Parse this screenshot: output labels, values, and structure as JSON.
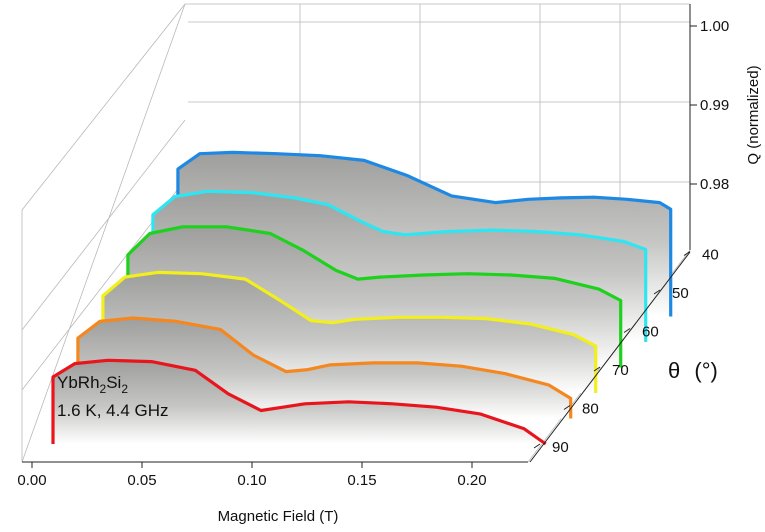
{
  "chart_data": {
    "type": "waterfall-line",
    "xlabel": "Magnetic Field (T)",
    "zlabel": "Q (normalized)",
    "ylabel_symbol": "θ",
    "ylabel_unit": "(°)",
    "annotation": {
      "compound_base": "YbRh",
      "compound_sub1": "2",
      "compound_mid": "Si",
      "compound_sub2": "2",
      "conditions": "1.6 K, 4.4 GHz"
    },
    "x_ticks": [
      "0.00",
      "0.05",
      "0.10",
      "0.15",
      "0.20"
    ],
    "x_tick_values": [
      0.0,
      0.05,
      0.1,
      0.15,
      0.2
    ],
    "xlim": [
      0.0,
      0.23
    ],
    "theta_ticks": [
      "40",
      "50",
      "60",
      "70",
      "80",
      "90"
    ],
    "theta_tick_values": [
      40,
      50,
      60,
      70,
      80,
      90
    ],
    "z_ticks": [
      "1.00",
      "0.99",
      "0.98"
    ],
    "z_tick_values": [
      1.0,
      0.99,
      0.98
    ],
    "zlim": [
      0.973,
      1.002
    ],
    "series": [
      {
        "theta": 40,
        "color": "#1e88e5",
        "x": [
          0.005,
          0.015,
          0.03,
          0.05,
          0.07,
          0.09,
          0.11,
          0.13,
          0.15,
          0.165,
          0.18,
          0.195,
          0.21,
          0.225,
          0.23
        ],
        "y": [
          0.9975,
          0.9998,
          1.0,
          0.9998,
          0.9995,
          0.9988,
          0.9965,
          0.9935,
          0.9925,
          0.993,
          0.9932,
          0.9933,
          0.993,
          0.9925,
          0.9915
        ]
      },
      {
        "theta": 50,
        "color": "#2ee6f2",
        "x": [
          0.005,
          0.015,
          0.03,
          0.05,
          0.07,
          0.085,
          0.1,
          0.11,
          0.12,
          0.14,
          0.16,
          0.18,
          0.2,
          0.22,
          0.23
        ],
        "y": [
          0.9945,
          0.9972,
          0.998,
          0.9978,
          0.997,
          0.996,
          0.9935,
          0.992,
          0.9915,
          0.992,
          0.9922,
          0.992,
          0.9915,
          0.9905,
          0.9893
        ]
      },
      {
        "theta": 60,
        "color": "#1dd11d",
        "x": [
          0.005,
          0.015,
          0.03,
          0.05,
          0.07,
          0.085,
          0.1,
          0.11,
          0.12,
          0.14,
          0.16,
          0.18,
          0.2,
          0.22,
          0.23
        ],
        "y": [
          0.9923,
          0.9955,
          0.9965,
          0.9965,
          0.9955,
          0.993,
          0.99,
          0.9887,
          0.989,
          0.9893,
          0.9895,
          0.9893,
          0.9888,
          0.9872,
          0.9855
        ]
      },
      {
        "theta": 70,
        "color": "#f2ef1c",
        "x": [
          0.005,
          0.015,
          0.03,
          0.05,
          0.07,
          0.085,
          0.1,
          0.11,
          0.12,
          0.14,
          0.16,
          0.18,
          0.2,
          0.22,
          0.23
        ],
        "y": [
          0.99,
          0.9928,
          0.9935,
          0.9933,
          0.9925,
          0.9895,
          0.9863,
          0.986,
          0.9865,
          0.9868,
          0.9868,
          0.9866,
          0.9858,
          0.9842,
          0.9825
        ]
      },
      {
        "theta": 80,
        "color": "#f5871f",
        "x": [
          0.005,
          0.015,
          0.03,
          0.05,
          0.07,
          0.085,
          0.1,
          0.11,
          0.12,
          0.14,
          0.16,
          0.18,
          0.2,
          0.22,
          0.23
        ],
        "y": [
          0.9875,
          0.99,
          0.9905,
          0.99,
          0.9888,
          0.985,
          0.9825,
          0.9828,
          0.9835,
          0.9838,
          0.9838,
          0.9833,
          0.9822,
          0.9805,
          0.9785
        ]
      },
      {
        "theta": 90,
        "color": "#e8161c",
        "x": [
          0.005,
          0.015,
          0.03,
          0.05,
          0.07,
          0.085,
          0.1,
          0.11,
          0.12,
          0.14,
          0.16,
          0.18,
          0.2,
          0.22,
          0.23
        ],
        "y": [
          0.9855,
          0.9875,
          0.988,
          0.9878,
          0.9865,
          0.983,
          0.9805,
          0.981,
          0.9815,
          0.9818,
          0.9815,
          0.981,
          0.98,
          0.9778,
          0.9755
        ]
      }
    ],
    "fill": "gray gradient under each curve",
    "grid": true
  }
}
